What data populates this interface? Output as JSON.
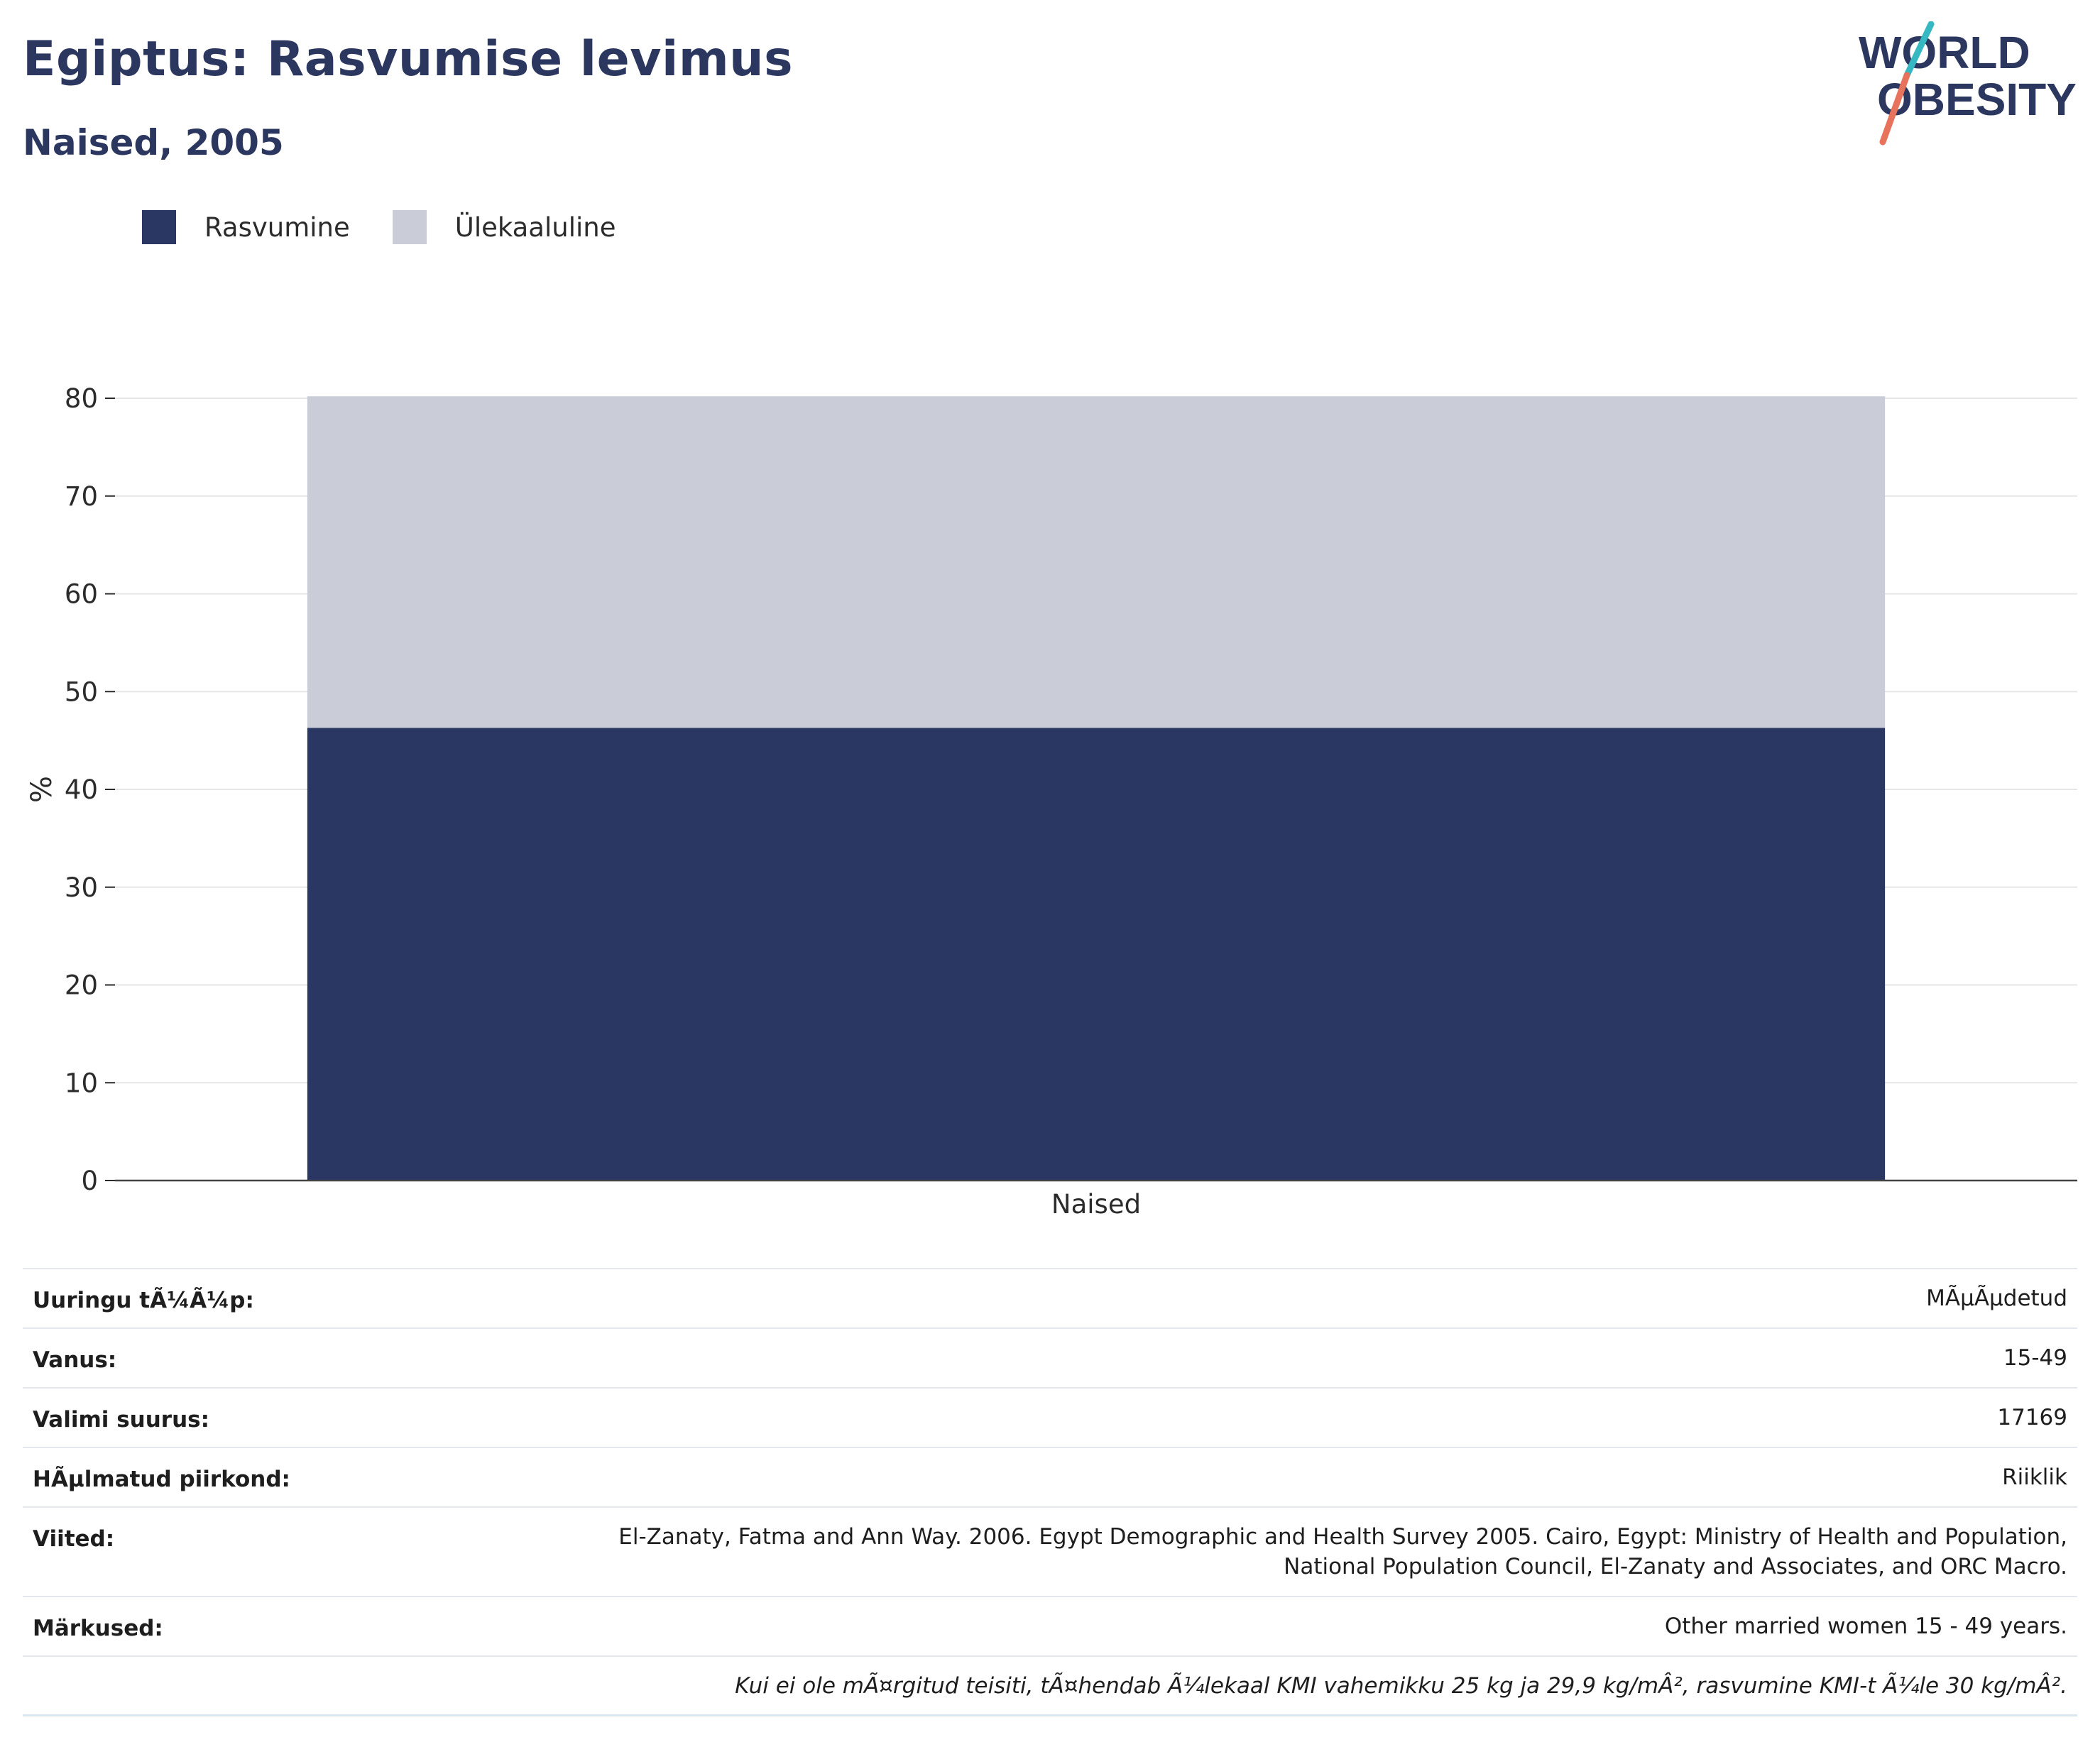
{
  "header": {
    "title": "Egiptus: Rasvumise levimus",
    "subtitle": "Naised, 2005"
  },
  "logo": {
    "line1": "WORLD",
    "line2": "OBESITY"
  },
  "colors": {
    "obesity": "#2b3763",
    "overweight": "#cacdd8",
    "text": "#2b375f",
    "grid": "#e6e6e6",
    "logo_slash_top": "#35b8c1",
    "logo_slash_bottom": "#e8735d"
  },
  "legend": [
    {
      "label": "Rasvumine",
      "color": "#2b3763"
    },
    {
      "label": "Ülekaaluline",
      "color": "#cacdd8"
    }
  ],
  "chart_data": {
    "type": "bar",
    "stacked": true,
    "categories": [
      "Naised"
    ],
    "series": [
      {
        "name": "Rasvumine",
        "values": [
          46.3
        ]
      },
      {
        "name": "Ülekaaluline",
        "values": [
          33.9
        ]
      }
    ],
    "ylabel": "%",
    "xlabel": "",
    "ylim": [
      0,
      80
    ],
    "yticks": [
      0,
      10,
      20,
      30,
      40,
      50,
      60,
      70,
      80
    ],
    "grid": true,
    "legend_position": "top-left"
  },
  "info_table": [
    {
      "key": "Uuringu tÃ¼Ã¼p:",
      "value": "MÃµÃµdetud"
    },
    {
      "key": "Vanus:",
      "value": "15-49"
    },
    {
      "key": "Valimi suurus:",
      "value": "17169"
    },
    {
      "key": "HÃµlmatud piirkond:",
      "value": "Riiklik"
    },
    {
      "key": "Viited:",
      "value_lines": [
        "El-Zanaty, Fatma and Ann Way. 2006. Egypt Demographic and Health Survey 2005. Cairo, Egypt: Ministry of Health and Population,",
        "National Population Council, El-Zanaty and Associates, and ORC Macro."
      ]
    },
    {
      "key": "Märkused:",
      "value": "Other married women 15 - 49 years."
    }
  ],
  "footnote": "Kui ei ole mÃ¤rgitud teisiti, tÃ¤hendab Ã¼lekaal KMI vahemikku 25 kg ja 29,9 kg/mÂ², rasvumine KMI-t Ã¼le 30 kg/mÂ²."
}
